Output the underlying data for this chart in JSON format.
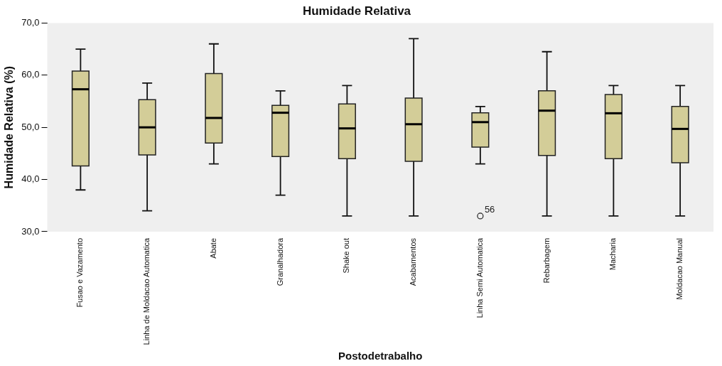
{
  "chart_data": {
    "type": "box",
    "title": "Humidade Relativa",
    "xlabel": "Postodetrabalho",
    "ylabel": "Humidade Relativa (%)",
    "categories": [
      "Fusao e Vazamento",
      "Linha de Moldacao Automatica",
      "Abate",
      "Granalhadora",
      "Shake out",
      "Acabamentos",
      "Linha Semi Automatica",
      "Rebarbagem",
      "Macharia",
      "Moldacao Manual"
    ],
    "boxes": [
      {
        "low": 38,
        "q1": 42.6,
        "median": 57.3,
        "q3": 60.8,
        "high": 65
      },
      {
        "low": 34,
        "q1": 44.7,
        "median": 50,
        "q3": 55.3,
        "high": 58.5
      },
      {
        "low": 43,
        "q1": 47,
        "median": 51.8,
        "q3": 60.3,
        "high": 66
      },
      {
        "low": 37,
        "q1": 44.4,
        "median": 52.8,
        "q3": 54.2,
        "high": 57
      },
      {
        "low": 33,
        "q1": 44,
        "median": 49.8,
        "q3": 54.5,
        "high": 58
      },
      {
        "low": 33,
        "q1": 43.5,
        "median": 50.6,
        "q3": 55.6,
        "high": 67
      },
      {
        "low": 43,
        "q1": 46.2,
        "median": 51,
        "q3": 52.8,
        "high": 54,
        "outliers": [
          33
        ]
      },
      {
        "low": 33,
        "q1": 44.6,
        "median": 53.2,
        "q3": 57,
        "high": 64.5
      },
      {
        "low": 33,
        "q1": 44,
        "median": 52.7,
        "q3": 56.3,
        "high": 58
      },
      {
        "low": 33,
        "q1": 43.2,
        "median": 49.7,
        "q3": 54,
        "high": 58
      }
    ],
    "color": "#d3cd98",
    "ylim": [
      30,
      70
    ],
    "yticks": [
      {
        "value": 30,
        "label": "30,0"
      },
      {
        "value": 40,
        "label": "40,0"
      },
      {
        "value": 50,
        "label": "50,0"
      },
      {
        "value": 60,
        "label": "60,0"
      },
      {
        "value": 70,
        "label": "70,0"
      }
    ],
    "annotations": [
      "56"
    ],
    "grid": false,
    "legend": false
  }
}
